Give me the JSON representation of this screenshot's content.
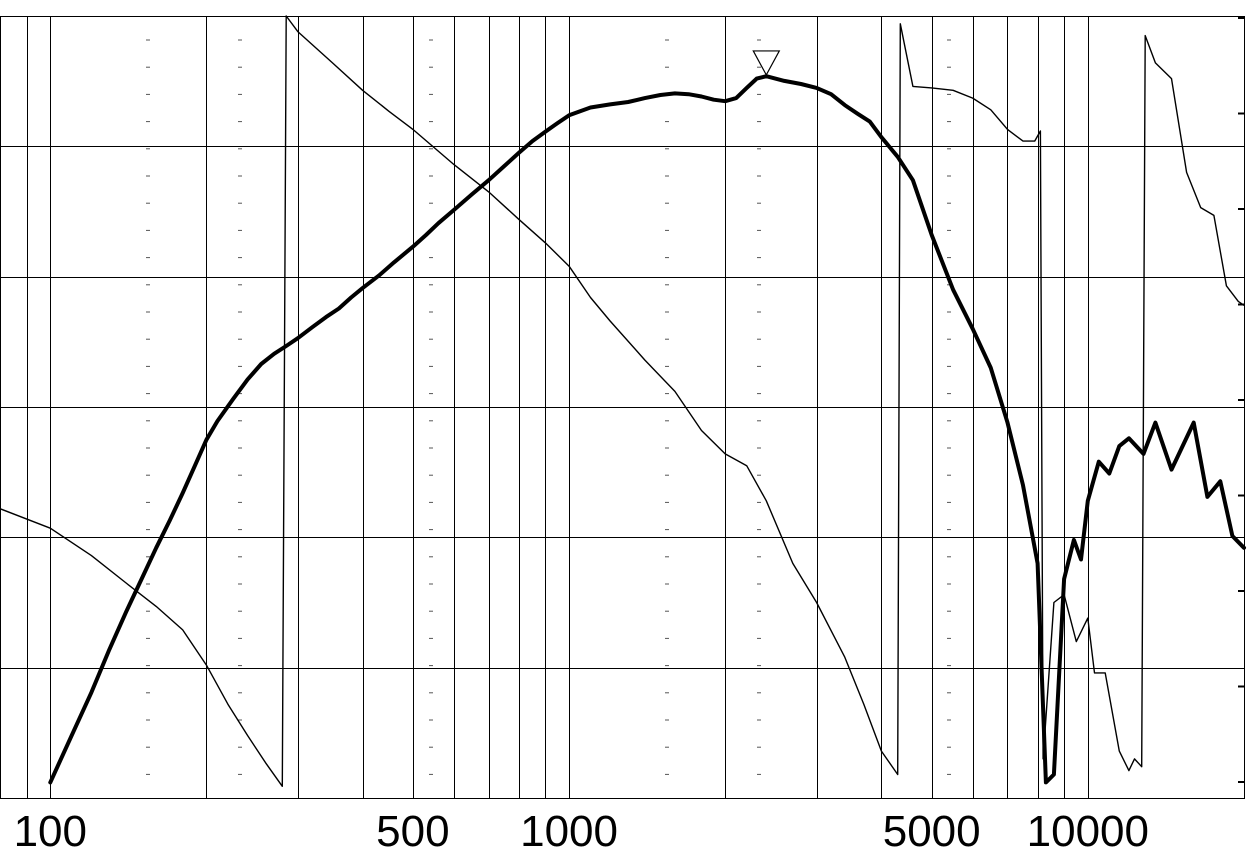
{
  "chart_data": {
    "type": "line",
    "title": "",
    "xlabel": "",
    "ylabel": "",
    "x_scale": "log",
    "xlim": [
      80,
      20000
    ],
    "ylim": [
      0,
      1
    ],
    "grid": true,
    "x_ticks": [
      {
        "value": 100,
        "label": "100"
      },
      {
        "value": 500,
        "label": "500"
      },
      {
        "value": 1000,
        "label": "1000"
      },
      {
        "value": 5000,
        "label": "5000"
      },
      {
        "value": 10000,
        "label": "10000"
      }
    ],
    "series": [
      {
        "style": "thick",
        "color": "#000000",
        "points": [
          [
            100,
            0.02
          ],
          [
            110,
            0.08
          ],
          [
            120,
            0.135
          ],
          [
            130,
            0.19
          ],
          [
            140,
            0.238
          ],
          [
            150,
            0.28
          ],
          [
            160,
            0.32
          ],
          [
            170,
            0.355
          ],
          [
            180,
            0.39
          ],
          [
            190,
            0.425
          ],
          [
            200,
            0.458
          ],
          [
            210,
            0.482
          ],
          [
            225,
            0.51
          ],
          [
            240,
            0.535
          ],
          [
            255,
            0.555
          ],
          [
            270,
            0.568
          ],
          [
            285,
            0.578
          ],
          [
            300,
            0.588
          ],
          [
            320,
            0.602
          ],
          [
            340,
            0.615
          ],
          [
            360,
            0.626
          ],
          [
            380,
            0.64
          ],
          [
            400,
            0.652
          ],
          [
            430,
            0.668
          ],
          [
            460,
            0.685
          ],
          [
            500,
            0.705
          ],
          [
            530,
            0.72
          ],
          [
            560,
            0.735
          ],
          [
            600,
            0.752
          ],
          [
            650,
            0.772
          ],
          [
            700,
            0.79
          ],
          [
            750,
            0.808
          ],
          [
            800,
            0.825
          ],
          [
            850,
            0.84
          ],
          [
            900,
            0.852
          ],
          [
            950,
            0.863
          ],
          [
            1000,
            0.873
          ],
          [
            1100,
            0.883
          ],
          [
            1200,
            0.887
          ],
          [
            1300,
            0.89
          ],
          [
            1400,
            0.895
          ],
          [
            1500,
            0.899
          ],
          [
            1600,
            0.901
          ],
          [
            1700,
            0.9
          ],
          [
            1800,
            0.897
          ],
          [
            1900,
            0.893
          ],
          [
            2000,
            0.891
          ],
          [
            2100,
            0.895
          ],
          [
            2200,
            0.908
          ],
          [
            2300,
            0.92
          ],
          [
            2400,
            0.923
          ],
          [
            2600,
            0.917
          ],
          [
            2800,
            0.913
          ],
          [
            3000,
            0.908
          ],
          [
            3200,
            0.9
          ],
          [
            3400,
            0.886
          ],
          [
            3600,
            0.875
          ],
          [
            3800,
            0.865
          ],
          [
            4000,
            0.845
          ],
          [
            4300,
            0.82
          ],
          [
            4600,
            0.79
          ],
          [
            5000,
            0.72
          ],
          [
            5500,
            0.65
          ],
          [
            6000,
            0.6
          ],
          [
            6500,
            0.55
          ],
          [
            7000,
            0.48
          ],
          [
            7500,
            0.4
          ],
          [
            8000,
            0.3
          ],
          [
            8300,
            0.02
          ],
          [
            8600,
            0.03
          ],
          [
            9000,
            0.28
          ],
          [
            9400,
            0.33
          ],
          [
            9700,
            0.305
          ],
          [
            10000,
            0.38
          ],
          [
            10500,
            0.43
          ],
          [
            11000,
            0.415
          ],
          [
            11500,
            0.45
          ],
          [
            12000,
            0.46
          ],
          [
            12800,
            0.44
          ],
          [
            13500,
            0.48
          ],
          [
            14500,
            0.42
          ],
          [
            16000,
            0.48
          ],
          [
            17000,
            0.385
          ],
          [
            18000,
            0.405
          ],
          [
            19000,
            0.335
          ],
          [
            20000,
            0.32
          ]
        ]
      },
      {
        "style": "thin",
        "color": "#000000",
        "points": [
          [
            80,
            0.37
          ],
          [
            100,
            0.345
          ],
          [
            120,
            0.31
          ],
          [
            140,
            0.275
          ],
          [
            160,
            0.245
          ],
          [
            180,
            0.215
          ],
          [
            200,
            0.17
          ],
          [
            220,
            0.12
          ],
          [
            240,
            0.08
          ],
          [
            260,
            0.045
          ],
          [
            280,
            0.015
          ],
          [
            285,
            1.0
          ],
          [
            300,
            0.98
          ],
          [
            350,
            0.94
          ],
          [
            400,
            0.905
          ],
          [
            450,
            0.878
          ],
          [
            500,
            0.855
          ],
          [
            600,
            0.81
          ],
          [
            700,
            0.775
          ],
          [
            800,
            0.74
          ],
          [
            900,
            0.71
          ],
          [
            1000,
            0.68
          ],
          [
            1100,
            0.64
          ],
          [
            1200,
            0.61
          ],
          [
            1400,
            0.56
          ],
          [
            1600,
            0.52
          ],
          [
            1800,
            0.47
          ],
          [
            2000,
            0.44
          ],
          [
            2200,
            0.425
          ],
          [
            2400,
            0.38
          ],
          [
            2700,
            0.3
          ],
          [
            3000,
            0.25
          ],
          [
            3400,
            0.18
          ],
          [
            3700,
            0.12
          ],
          [
            4000,
            0.06
          ],
          [
            4300,
            0.03
          ],
          [
            4350,
            0.99
          ],
          [
            4600,
            0.91
          ],
          [
            5000,
            0.908
          ],
          [
            5500,
            0.905
          ],
          [
            6000,
            0.895
          ],
          [
            6500,
            0.88
          ],
          [
            7000,
            0.855
          ],
          [
            7500,
            0.84
          ],
          [
            7900,
            0.84
          ],
          [
            8100,
            0.853
          ],
          [
            8200,
            0.05
          ],
          [
            8600,
            0.25
          ],
          [
            9000,
            0.26
          ],
          [
            9500,
            0.2
          ],
          [
            10000,
            0.23
          ],
          [
            10300,
            0.16
          ],
          [
            10800,
            0.16
          ],
          [
            11500,
            0.06
          ],
          [
            12000,
            0.035
          ],
          [
            12300,
            0.05
          ],
          [
            12700,
            0.04
          ],
          [
            12900,
            0.975
          ],
          [
            13500,
            0.94
          ],
          [
            14500,
            0.92
          ],
          [
            15500,
            0.8
          ],
          [
            16500,
            0.755
          ],
          [
            17500,
            0.745
          ],
          [
            18500,
            0.655
          ],
          [
            19500,
            0.635
          ],
          [
            20000,
            0.63
          ]
        ]
      }
    ],
    "marker": {
      "shape": "inverted-triangle",
      "x": 2400,
      "y": 0.94
    }
  }
}
